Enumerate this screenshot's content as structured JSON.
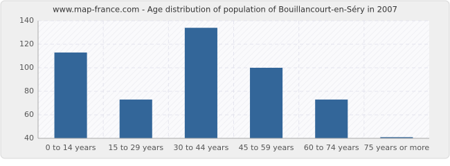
{
  "chart_data": {
    "type": "bar",
    "title": "www.map-france.com - Age distribution of population of Bouillancourt-en-Séry in 2007",
    "categories": [
      "0 to 14 years",
      "15 to 29 years",
      "30 to 44 years",
      "45 to 59 years",
      "60 to 74 years",
      "75 years or more"
    ],
    "values": [
      113,
      73,
      134,
      100,
      73,
      41
    ],
    "color": "#336699",
    "ylim": [
      40,
      140
    ],
    "yticks": [
      40,
      60,
      80,
      100,
      120,
      140
    ],
    "grid": true
  }
}
